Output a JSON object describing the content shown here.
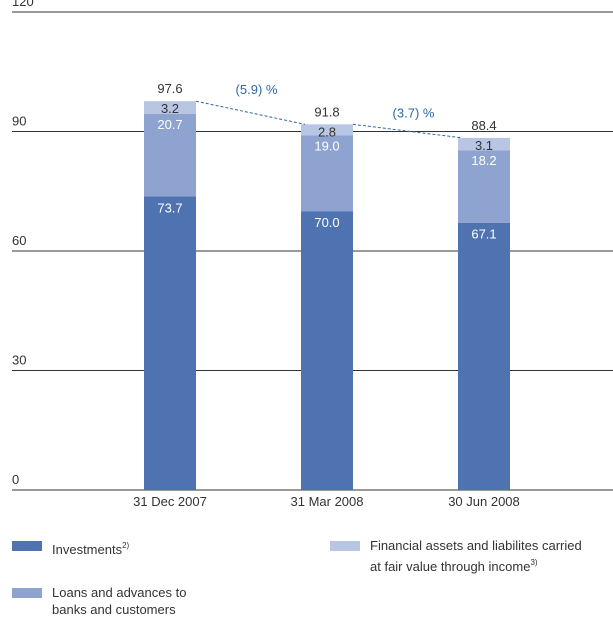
{
  "chart_data": {
    "type": "bar",
    "stacked": true,
    "categories": [
      "31 Dec 2007",
      "31 Mar 2008",
      "30 Jun 2008"
    ],
    "series": [
      {
        "name": "Investments",
        "name_sup": "2)",
        "values": [
          73.7,
          70.0,
          67.1
        ],
        "color": "#4f73b0"
      },
      {
        "name": "Loans and advances to banks and customers",
        "values": [
          20.7,
          19.0,
          18.2
        ],
        "color": "#8ea3cf"
      },
      {
        "name": "Financial assets and liabilites carried at fair value through income",
        "name_sup": "3)",
        "values": [
          3.2,
          2.8,
          3.1
        ],
        "color": "#b8c5e3"
      }
    ],
    "totals": [
      97.6,
      91.8,
      88.4
    ],
    "changes": [
      "(5.9) %",
      "(3.7) %"
    ],
    "change_color": "#2c6aa8",
    "ylim": [
      0,
      120
    ],
    "yticks": [
      0,
      30,
      60,
      90,
      120
    ],
    "grid": true,
    "legend_position": "bottom"
  },
  "legend": {
    "investments": "Investments",
    "investments_sup": "2)",
    "loans_line1": "Loans and advances to",
    "loans_line2": "banks and customers",
    "fair_line1": "Financial assets and liabilites carried",
    "fair_line2": "at fair value through income",
    "fair_sup": "3)"
  }
}
